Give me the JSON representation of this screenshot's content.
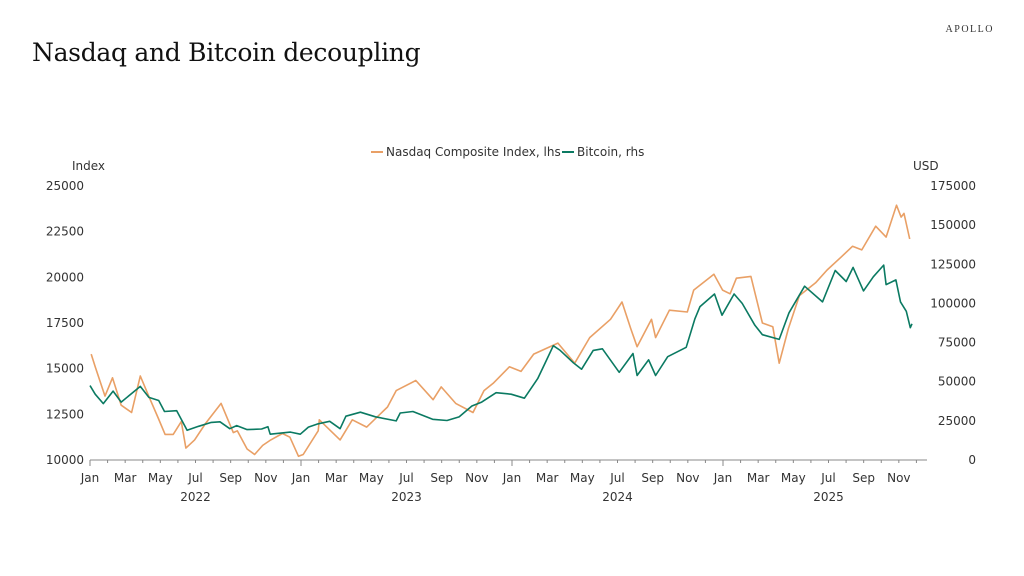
{
  "title": "Nasdaq and Bitcoin decoupling",
  "logo": "APOLLO",
  "chart_data": {
    "type": "line",
    "title": "Nasdaq and Bitcoin decoupling",
    "legend_position": "top-center",
    "grid": false,
    "x_range": [
      "2022-01-01",
      "2025-12-31"
    ],
    "x_month_labels": [
      "Jan",
      "Mar",
      "May",
      "Jul",
      "Sep",
      "Nov",
      "Jan",
      "Mar",
      "May",
      "Jul",
      "Sep",
      "Nov",
      "Jan",
      "Mar",
      "May",
      "Jul",
      "Sep",
      "Nov",
      "Jan",
      "Mar",
      "May",
      "Jul",
      "Sep",
      "Nov"
    ],
    "x_year_labels": [
      "2022",
      "2023",
      "2024",
      "2025"
    ],
    "y_left": {
      "label": "Index",
      "range": [
        10000,
        25000
      ],
      "ticks": [
        "10000",
        "12500",
        "15000",
        "17500",
        "20000",
        "22500",
        "25000"
      ]
    },
    "y_right": {
      "label": "USD",
      "range": [
        0,
        175000
      ],
      "ticks": [
        "0",
        "25000",
        "50000",
        "75000",
        "100000",
        "125000",
        "150000",
        "175000"
      ]
    },
    "series": [
      {
        "name": "Nasdaq Composite Index, lhs",
        "axis": "left",
        "color": "#e9a066",
        "x": [
          "2022-01-03",
          "2022-01-10",
          "2022-01-27",
          "2022-02-09",
          "2022-02-24",
          "2022-03-14",
          "2022-03-29",
          "2022-04-14",
          "2022-04-29",
          "2022-05-11",
          "2022-05-25",
          "2022-06-08",
          "2022-06-16",
          "2022-07-01",
          "2022-07-20",
          "2022-08-16",
          "2022-09-06",
          "2022-09-13",
          "2022-09-30",
          "2022-10-13",
          "2022-10-27",
          "2022-11-10",
          "2022-11-30",
          "2022-12-13",
          "2022-12-28",
          "2023-01-05",
          "2023-01-31",
          "2023-02-02",
          "2023-03-10",
          "2023-03-31",
          "2023-04-25",
          "2023-05-31",
          "2023-06-15",
          "2023-07-19",
          "2023-08-18",
          "2023-09-01",
          "2023-09-26",
          "2023-10-26",
          "2023-11-14",
          "2023-11-30",
          "2023-12-28",
          "2024-01-17",
          "2024-02-08",
          "2024-03-21",
          "2024-04-19",
          "2024-05-15",
          "2024-06-20",
          "2024-07-10",
          "2024-07-25",
          "2024-08-05",
          "2024-08-30",
          "2024-09-06",
          "2024-09-30",
          "2024-10-31",
          "2024-11-11",
          "2024-12-16",
          "2024-12-31",
          "2025-01-13",
          "2025-01-24",
          "2025-02-18",
          "2025-03-10",
          "2025-03-28",
          "2025-04-08",
          "2025-04-24",
          "2025-05-13",
          "2025-06-10",
          "2025-06-30",
          "2025-07-24",
          "2025-08-13",
          "2025-08-29",
          "2025-09-22",
          "2025-10-10",
          "2025-10-28",
          "2025-11-05",
          "2025-11-10",
          "2025-11-20"
        ],
        "values": [
          15800,
          15100,
          13500,
          14500,
          13000,
          12600,
          14600,
          13400,
          12300,
          11400,
          11400,
          12100,
          10650,
          11100,
          12000,
          13100,
          11500,
          11600,
          10600,
          10300,
          10800,
          11100,
          11450,
          11250,
          10200,
          10300,
          11600,
          12200,
          11100,
          12200,
          11800,
          12900,
          13800,
          14350,
          13300,
          14000,
          13100,
          12600,
          13800,
          14200,
          15100,
          14850,
          15800,
          16400,
          15300,
          16700,
          17700,
          18650,
          17200,
          16200,
          17700,
          16700,
          18200,
          18100,
          19300,
          20170,
          19300,
          19100,
          19950,
          20050,
          17500,
          17300,
          15300,
          17200,
          19000,
          19700,
          20400,
          21100,
          21700,
          21500,
          22800,
          22200,
          23950,
          23300,
          23500,
          22100
        ]
      },
      {
        "name": "Bitcoin, rhs",
        "axis": "right",
        "color": "#0b7a62",
        "x": [
          "2022-01-01",
          "2022-01-10",
          "2022-01-24",
          "2022-02-10",
          "2022-02-24",
          "2022-03-29",
          "2022-04-13",
          "2022-04-30",
          "2022-05-10",
          "2022-05-31",
          "2022-06-18",
          "2022-07-08",
          "2022-07-30",
          "2022-08-14",
          "2022-08-31",
          "2022-09-12",
          "2022-09-30",
          "2022-10-25",
          "2022-11-05",
          "2022-11-09",
          "2022-12-14",
          "2022-12-31",
          "2023-01-14",
          "2023-01-31",
          "2023-02-20",
          "2023-03-10",
          "2023-03-20",
          "2023-04-14",
          "2023-05-10",
          "2023-06-15",
          "2023-06-22",
          "2023-07-14",
          "2023-08-17",
          "2023-09-11",
          "2023-10-02",
          "2023-10-24",
          "2023-11-10",
          "2023-12-05",
          "2023-12-31",
          "2024-01-23",
          "2024-02-15",
          "2024-02-28",
          "2024-03-13",
          "2024-03-25",
          "2024-04-17",
          "2024-05-01",
          "2024-05-21",
          "2024-06-06",
          "2024-07-05",
          "2024-07-29",
          "2024-08-05",
          "2024-08-25",
          "2024-09-06",
          "2024-09-27",
          "2024-10-29",
          "2024-11-13",
          "2024-11-22",
          "2024-12-17",
          "2024-12-30",
          "2025-01-20",
          "2025-02-03",
          "2025-02-25",
          "2025-03-10",
          "2025-04-08",
          "2025-04-25",
          "2025-05-22",
          "2025-06-22",
          "2025-07-14",
          "2025-08-02",
          "2025-08-14",
          "2025-09-01",
          "2025-09-18",
          "2025-10-06",
          "2025-10-10",
          "2025-10-27",
          "2025-11-04",
          "2025-11-14",
          "2025-11-21",
          "2025-11-24"
        ],
        "values": [
          47500,
          42000,
          36000,
          44000,
          37000,
          47000,
          40000,
          38000,
          31000,
          31500,
          19000,
          21500,
          24000,
          24400,
          20000,
          22000,
          19400,
          19800,
          21300,
          16500,
          17800,
          16500,
          21000,
          23100,
          24700,
          20000,
          28000,
          30500,
          27600,
          25000,
          30000,
          31000,
          26000,
          25200,
          27500,
          34500,
          37000,
          43000,
          42000,
          39500,
          52000,
          62000,
          73000,
          70000,
          62000,
          58000,
          70000,
          71000,
          56000,
          68000,
          54000,
          64000,
          54000,
          66000,
          72000,
          90000,
          98000,
          106000,
          92500,
          106000,
          100000,
          86000,
          80000,
          77000,
          94000,
          111000,
          101000,
          121000,
          114000,
          123000,
          108000,
          117000,
          124500,
          112000,
          115000,
          101000,
          95000,
          84500,
          87000
        ]
      }
    ]
  }
}
